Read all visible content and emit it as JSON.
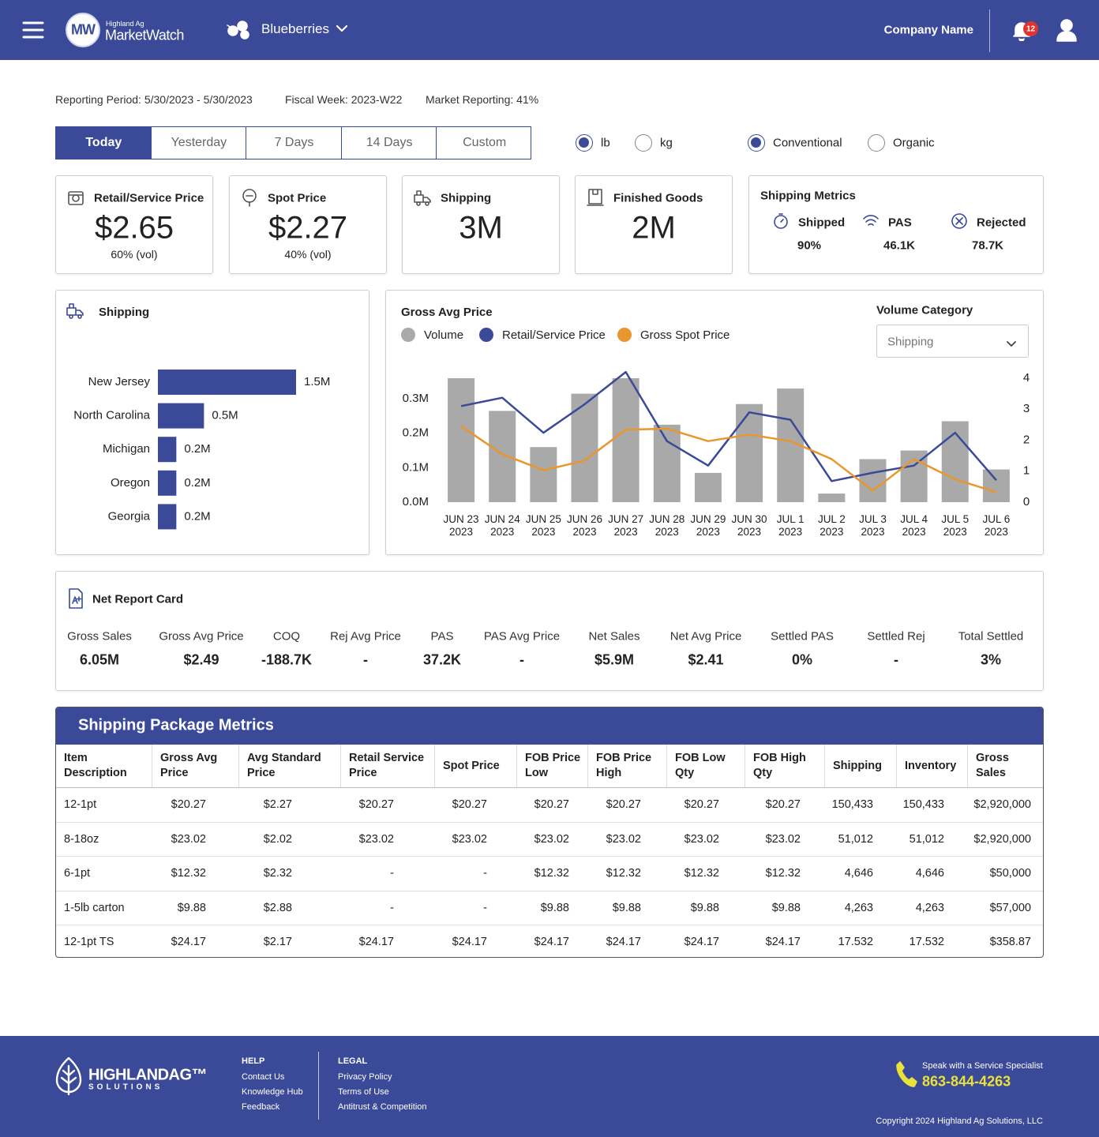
{
  "header": {
    "logo_mark": "MW",
    "logo_small": "Highland Ag",
    "logo_name": "MarketWatch",
    "product": "Blueberries",
    "company": "Company Name",
    "notifications": 12
  },
  "reporting": {
    "period": "Reporting Period: 5/30/2023 - 5/30/2023",
    "fiscal_week": "Fiscal Week: 2023-W22",
    "market": "Market Reporting: 41%"
  },
  "tabs": {
    "options": [
      "Today",
      "Yesterday",
      "7 Days",
      "14 Days",
      "Custom"
    ],
    "selected": 0
  },
  "units": {
    "options": [
      "lb",
      "kg"
    ],
    "selected": 0
  },
  "types": {
    "options": [
      "Conventional",
      "Organic"
    ],
    "selected": 0
  },
  "kpis": [
    {
      "title": "Retail/Service Price",
      "value": "$2.65",
      "sub": "60% (vol)"
    },
    {
      "title": "Spot Price",
      "value": "$2.27",
      "sub": "40% (vol)"
    },
    {
      "title": "Shipping",
      "value": "3M"
    },
    {
      "title": "Finished Goods",
      "value": "2M"
    }
  ],
  "shipping_metrics": {
    "title": "Shipping Metrics",
    "items": [
      {
        "label": "Shipped",
        "value": "90%"
      },
      {
        "label": "PAS",
        "value": "46.1K"
      },
      {
        "label": "Rejected",
        "value": "78.7K"
      }
    ]
  },
  "volume_category": {
    "label": "Volume Category",
    "selected": "Shipping"
  },
  "chart_data": [
    {
      "type": "barh",
      "title": "Shipping",
      "categories": [
        "New Jersey",
        "North Carolina",
        "Michigan",
        "Oregon",
        "Georgia"
      ],
      "values": [
        1500000,
        500000,
        200000,
        200000,
        200000
      ],
      "value_labels": [
        "1.5M",
        "0.5M",
        "0.2M",
        "0.2M",
        "0.2M"
      ],
      "color": "#3b4a98"
    },
    {
      "type": "combo",
      "title": "Gross Avg Price",
      "categories": [
        [
          "JUN 23",
          "2023"
        ],
        [
          "JUN 24",
          "2023"
        ],
        [
          "JUN 25",
          "2023"
        ],
        [
          "JUN 26",
          "2023"
        ],
        [
          "JUN 27",
          "2023"
        ],
        [
          "JUN 28",
          "2023"
        ],
        [
          "JUN 29",
          "2023"
        ],
        [
          "JUN 30",
          "2023"
        ],
        [
          "JUL 1",
          "2023"
        ],
        [
          "JUL 2",
          "2023"
        ],
        [
          "JUL 3",
          "2023"
        ],
        [
          "JUL 4",
          "2023"
        ],
        [
          "JUL 5",
          "2023"
        ],
        [
          "JUL 6",
          "2023"
        ]
      ],
      "series": [
        {
          "name": "Volume",
          "color": "#a9a9a9",
          "mark": "bar",
          "axis": "y",
          "values": [
            360000,
            265000,
            160000,
            315000,
            360000,
            225000,
            85000,
            285000,
            330000,
            25000,
            125000,
            150000,
            235000,
            95000
          ]
        },
        {
          "name": "Retail/Service Price",
          "color": "#3b4a98",
          "mark": "line",
          "axis": "y2",
          "values": [
            3.1,
            3.37,
            2.24,
            3.16,
            4.2,
            1.97,
            1.18,
            2.9,
            2.66,
            0.68,
            0.95,
            1.18,
            2.24,
            0.71
          ]
        },
        {
          "name": "Gross Spot Price",
          "color": "#e8962e",
          "mark": "line",
          "axis": "y2",
          "values": [
            2.45,
            1.55,
            1.03,
            1.34,
            2.34,
            2.37,
            1.97,
            2.18,
            1.97,
            1.39,
            0.37,
            1.39,
            0.74,
            0.32
          ]
        }
      ],
      "ylim": [
        0,
        360000
      ],
      "yticks": [
        {
          "value": 0,
          "label": "0.0M"
        },
        {
          "value": 100000,
          "label": "0.1M"
        },
        {
          "value": 200000,
          "label": "0.2M"
        },
        {
          "value": 300000,
          "label": "0.3M"
        }
      ],
      "y2lim": [
        0,
        4
      ],
      "y2ticks": [
        0,
        1,
        2,
        3,
        4
      ]
    }
  ],
  "net_report": {
    "title": "Net Report Card",
    "items": [
      {
        "label": "Gross Sales",
        "value": "6.05M"
      },
      {
        "label": "Gross Avg Price",
        "value": "$2.49"
      },
      {
        "label": "COQ",
        "value": "-188.7K"
      },
      {
        "label": "Rej Avg Price",
        "value": "-"
      },
      {
        "label": "PAS",
        "value": "37.2K"
      },
      {
        "label": "PAS Avg Price",
        "value": "-"
      },
      {
        "label": "Net Sales",
        "value": "$5.9M"
      },
      {
        "label": "Net Avg Price",
        "value": "$2.41"
      },
      {
        "label": "Settled PAS",
        "value": "0%"
      },
      {
        "label": "Settled Rej",
        "value": "-"
      },
      {
        "label": "Total Settled",
        "value": "3%"
      }
    ]
  },
  "table": {
    "title": "Shipping Package Metrics",
    "columns": [
      "Item Description",
      "Gross Avg Price",
      "Avg Standard Price",
      "Retail Service Price",
      "Spot Price",
      "FOB Price Low",
      "FOB Price High",
      "FOB Low Qty",
      "FOB High Qty",
      "Shipping",
      "Inventory",
      "Gross Sales"
    ],
    "rows": [
      [
        "12-1pt",
        "$20.27",
        "$2.27",
        "$20.27",
        "$20.27",
        "$20.27",
        "$20.27",
        "$20.27",
        "$20.27",
        "150,433",
        "150,433",
        "$2,920,000"
      ],
      [
        "8-18oz",
        "$23.02",
        "$2.02",
        "$23.02",
        "$23.02",
        "$23.02",
        "$23.02",
        "$23.02",
        "$23.02",
        "51,012",
        "51,012",
        "$2,920,000"
      ],
      [
        "6-1pt",
        "$12.32",
        "$2.32",
        "-",
        "-",
        "$12.32",
        "$12.32",
        "$12.32",
        "$12.32",
        "4,646",
        "4,646",
        "$50,000"
      ],
      [
        "1-5lb carton",
        "$9.88",
        "$2.88",
        "-",
        "-",
        "$9.88",
        "$9.88",
        "$9.88",
        "$9.88",
        "4,263",
        "4,263",
        "$57,000"
      ],
      [
        "12-1pt TS",
        "$24.17",
        "$2.17",
        "$24.17",
        "$24.17",
        "$24.17",
        "$24.17",
        "$24.17",
        "$24.17",
        "17.532",
        "17.532",
        "$358.87"
      ]
    ]
  },
  "footer": {
    "brand": "HIGHLANDAG™",
    "brand_sub": "SOLUTIONS",
    "help": {
      "title": "HELP",
      "links": [
        "Contact Us",
        "Knowledge Hub",
        "Feedback"
      ]
    },
    "legal": {
      "title": "LEGAL",
      "links": [
        "Privacy Policy",
        "Terms of Use",
        "Antitrust & Competition"
      ]
    },
    "phone_label": "Speak with a Service Specialist",
    "phone": "863-844-4263",
    "copyright": "Copyright 2024 Highland Ag Solutions, LLC"
  }
}
